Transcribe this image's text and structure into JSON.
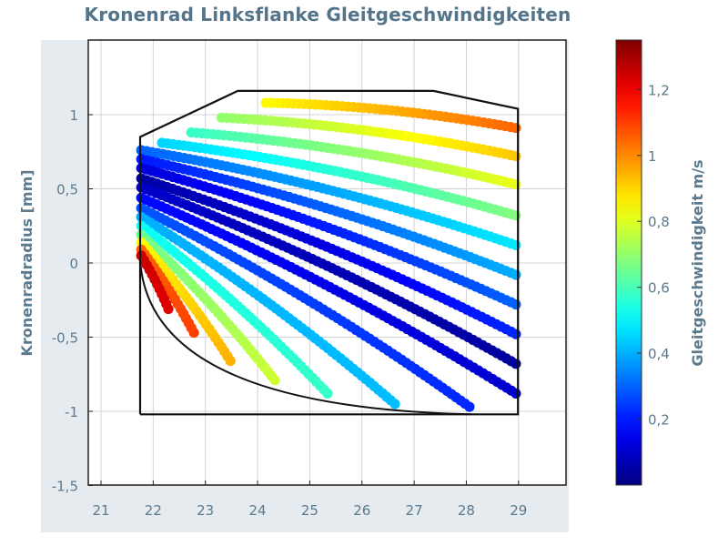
{
  "chart_data": {
    "type": "scatter",
    "title": "Kronenrad Linksflanke Gleitgeschwindigkeiten",
    "xlabel": "",
    "ylabel": "Kronenradradius [mm]",
    "colorbar_label": "Gleitgeschwindigkeit m/s",
    "xlim": [
      20.75,
      29.9
    ],
    "ylim": [
      -1.5,
      1.5
    ],
    "xticks": [
      21,
      22,
      23,
      24,
      25,
      26,
      27,
      28,
      29
    ],
    "xtick_labels": [
      "21",
      "22",
      "23",
      "24",
      "25",
      "26",
      "27",
      "28",
      "29"
    ],
    "yticks": [
      1,
      0.5,
      0,
      -0.5,
      -1,
      -1.5
    ],
    "ytick_labels": [
      "1",
      "0,5",
      "0",
      "-0,5",
      "-1",
      "-1,5"
    ],
    "colorbar_range": [
      0.0,
      1.35
    ],
    "colorbar_ticks": [
      1.2,
      1.0,
      0.8,
      0.6,
      0.4,
      0.2
    ],
    "colorbar_tick_labels": [
      "1,2",
      "1",
      "0,8",
      "0,6",
      "0,4",
      "0,2"
    ],
    "colormap": "jet",
    "grid": true,
    "boundary": [
      [
        21.75,
        -1.02
      ],
      [
        21.75,
        0.85
      ],
      [
        23.62,
        1.16
      ],
      [
        27.37,
        1.16
      ],
      [
        28.99,
        1.04
      ],
      [
        28.99,
        -1.02
      ],
      [
        21.75,
        -1.02
      ]
    ],
    "root_fillet": {
      "from": [
        21.75,
        0.02
      ],
      "to": [
        28.1,
        -1.02
      ]
    },
    "contact_lines": [
      {
        "start": [
          24.16,
          1.08
        ],
        "end": [
          28.95,
          0.91
        ],
        "v_start": 0.85,
        "v_end": 1.05
      },
      {
        "start": [
          23.31,
          0.98
        ],
        "end": [
          28.95,
          0.72
        ],
        "v_start": 0.7,
        "v_end": 0.92
      },
      {
        "start": [
          22.73,
          0.88
        ],
        "end": [
          28.95,
          0.53
        ],
        "v_start": 0.58,
        "v_end": 0.82
      },
      {
        "start": [
          22.17,
          0.81
        ],
        "end": [
          28.95,
          0.32
        ],
        "v_start": 0.45,
        "v_end": 0.68
      },
      {
        "start": [
          21.77,
          0.76
        ],
        "end": [
          28.95,
          0.12
        ],
        "v_start": 0.3,
        "v_end": 0.48
      },
      {
        "start": [
          21.77,
          0.7
        ],
        "end": [
          28.95,
          -0.08
        ],
        "v_start": 0.2,
        "v_end": 0.4
      },
      {
        "start": [
          21.77,
          0.64
        ],
        "end": [
          28.95,
          -0.28
        ],
        "v_start": 0.12,
        "v_end": 0.3
      },
      {
        "start": [
          21.77,
          0.57
        ],
        "end": [
          28.95,
          -0.48
        ],
        "v_start": 0.05,
        "v_end": 0.22
      },
      {
        "start": [
          21.77,
          0.51
        ],
        "end": [
          28.95,
          -0.68
        ],
        "v_start": 0.1,
        "v_end": 0.04
      },
      {
        "start": [
          21.77,
          0.44
        ],
        "end": [
          28.95,
          -0.88
        ],
        "v_start": 0.18,
        "v_end": 0.1
      },
      {
        "start": [
          21.77,
          0.37
        ],
        "end": [
          28.06,
          -0.97
        ],
        "v_start": 0.28,
        "v_end": 0.22
      },
      {
        "start": [
          21.77,
          0.31
        ],
        "end": [
          26.63,
          -0.95
        ],
        "v_start": 0.4,
        "v_end": 0.42
      },
      {
        "start": [
          21.77,
          0.25
        ],
        "end": [
          25.34,
          -0.88
        ],
        "v_start": 0.52,
        "v_end": 0.58
      },
      {
        "start": [
          21.77,
          0.19
        ],
        "end": [
          24.33,
          -0.79
        ],
        "v_start": 0.65,
        "v_end": 0.78
      },
      {
        "start": [
          21.77,
          0.14
        ],
        "end": [
          23.48,
          -0.66
        ],
        "v_start": 0.85,
        "v_end": 0.95
      },
      {
        "start": [
          21.77,
          0.09
        ],
        "end": [
          22.78,
          -0.47
        ],
        "v_start": 1.05,
        "v_end": 1.1
      },
      {
        "start": [
          21.77,
          0.05
        ],
        "end": [
          22.29,
          -0.31
        ],
        "v_start": 1.25,
        "v_end": 1.22
      }
    ]
  },
  "colors": {
    "text": "#5b7a8e",
    "title": "#54748a",
    "axis_strip": "#e6ebf0",
    "grid": "#d4d4d4",
    "boundary": "#111111"
  }
}
